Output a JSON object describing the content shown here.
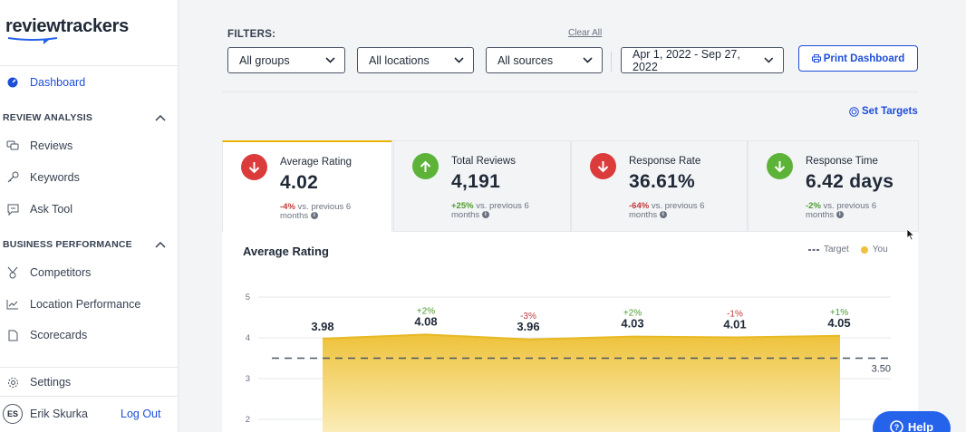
{
  "brand": {
    "logo_text": "reviewtrackers"
  },
  "sidebar": {
    "dashboard": "Dashboard",
    "review_analysis": {
      "title": "REVIEW ANALYSIS",
      "items": [
        "Reviews",
        "Keywords",
        "Ask Tool"
      ]
    },
    "business_performance": {
      "title": "BUSINESS PERFORMANCE",
      "items": [
        "Competitors",
        "Location Performance",
        "Scorecards"
      ]
    },
    "settings": "Settings",
    "user": {
      "initials": "ES",
      "name": "Erik Skurka",
      "logout": "Log Out"
    }
  },
  "filters": {
    "label": "FILTERS:",
    "clear_all": "Clear All",
    "groups": "All groups",
    "locations": "All locations",
    "sources": "All sources",
    "date_range": "Apr 1, 2022 - Sep 27, 2022",
    "print": "Print Dashboard"
  },
  "set_targets": "Set Targets",
  "kpis": [
    {
      "title": "Average Rating",
      "value": "4.02",
      "change": "-4%",
      "change_text": "vs. previous 6 months",
      "direction": "down"
    },
    {
      "title": "Total Reviews",
      "value": "4,191",
      "change": "+25%",
      "change_text": "vs. previous 6 months",
      "direction": "up"
    },
    {
      "title": "Response Rate",
      "value": "36.61%",
      "change": "-64%",
      "change_text": "vs. previous 6 months",
      "direction": "down"
    },
    {
      "title": "Response Time",
      "value": "6.42 days",
      "change": "-2%",
      "change_text": "vs. previous 6 months",
      "direction": "up"
    }
  ],
  "chart": {
    "title": "Average Rating",
    "legend_target": "Target",
    "legend_you": "You"
  },
  "chart_data": {
    "type": "area",
    "title": "Average Rating",
    "x": [
      1,
      2,
      3,
      4,
      5,
      6
    ],
    "values": [
      3.98,
      4.08,
      3.96,
      4.03,
      4.01,
      4.05
    ],
    "value_labels": [
      "3.98",
      "4.08",
      "3.96",
      "4.03",
      "4.01",
      "4.05"
    ],
    "changes": [
      "",
      "+2%",
      "-3%",
      "+2%",
      "-1%",
      "+1%"
    ],
    "target": 3.5,
    "target_label": "3.50",
    "y_ticks": [
      5,
      4,
      3,
      2
    ],
    "ylim": [
      1.5,
      5
    ],
    "series": [
      {
        "name": "You",
        "color": "#eec23a"
      },
      {
        "name": "Target",
        "style": "dashed"
      }
    ],
    "legend_position": "top-right",
    "grid": true
  },
  "help": {
    "label": "Help"
  },
  "colors": {
    "accent": "#1d4ed8",
    "down": "#dc3b3b",
    "up": "#5cb338",
    "series": "#eec23a"
  }
}
